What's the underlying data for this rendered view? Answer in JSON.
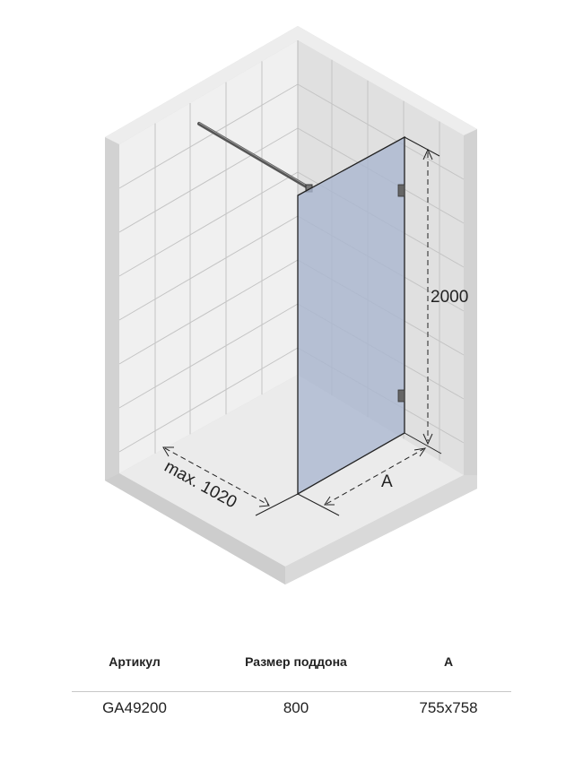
{
  "diagram": {
    "height_label": "2000",
    "width_label": "A",
    "max_label": "max. 1020",
    "colors": {
      "glass": "#a9b6d0",
      "wall_left": "#f0f0f0",
      "wall_right": "#e0e0e0",
      "floor": "#ebebeb",
      "tile_line": "#c4c4c4"
    }
  },
  "table": {
    "headers": [
      "Артикул",
      "Размер поддона",
      "A"
    ],
    "rows": [
      [
        "GA49200",
        "800",
        "755x758"
      ]
    ]
  }
}
